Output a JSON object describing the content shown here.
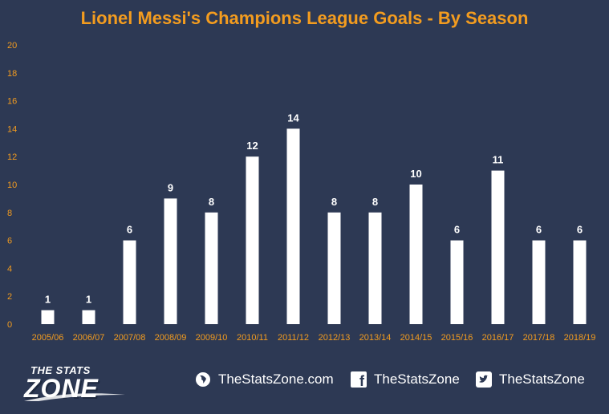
{
  "title": "Lionel Messi's Champions League Goals - By Season",
  "colors": {
    "background": "#2d3954",
    "title": "#f39c1f",
    "tick_labels": "#f39c1f",
    "bars": "#ffffff",
    "data_labels": "#ffffff"
  },
  "chart_data": {
    "type": "bar",
    "title": "Lionel Messi's Champions League Goals - By Season",
    "xlabel": "",
    "ylabel": "",
    "ylim": [
      0,
      20
    ],
    "yticks": [
      0,
      2,
      4,
      6,
      8,
      10,
      12,
      14,
      16,
      18,
      20
    ],
    "grid": false,
    "legend": "none",
    "categories": [
      "2005/06",
      "2006/07",
      "2007/08",
      "2008/09",
      "2009/10",
      "2010/11",
      "2011/12",
      "2012/13",
      "2013/14",
      "2014/15",
      "2015/16",
      "2016/17",
      "2017/18",
      "2018/19"
    ],
    "values": [
      1,
      1,
      6,
      9,
      8,
      12,
      14,
      8,
      8,
      10,
      6,
      11,
      6,
      6
    ]
  },
  "footer": {
    "logo_small": "THE STATS",
    "logo_big": "ZONE",
    "website": "TheStatsZone.com",
    "facebook": "TheStatsZone",
    "twitter": "TheStatsZone",
    "icons": [
      "globe-icon",
      "facebook-icon",
      "twitter-icon"
    ]
  }
}
